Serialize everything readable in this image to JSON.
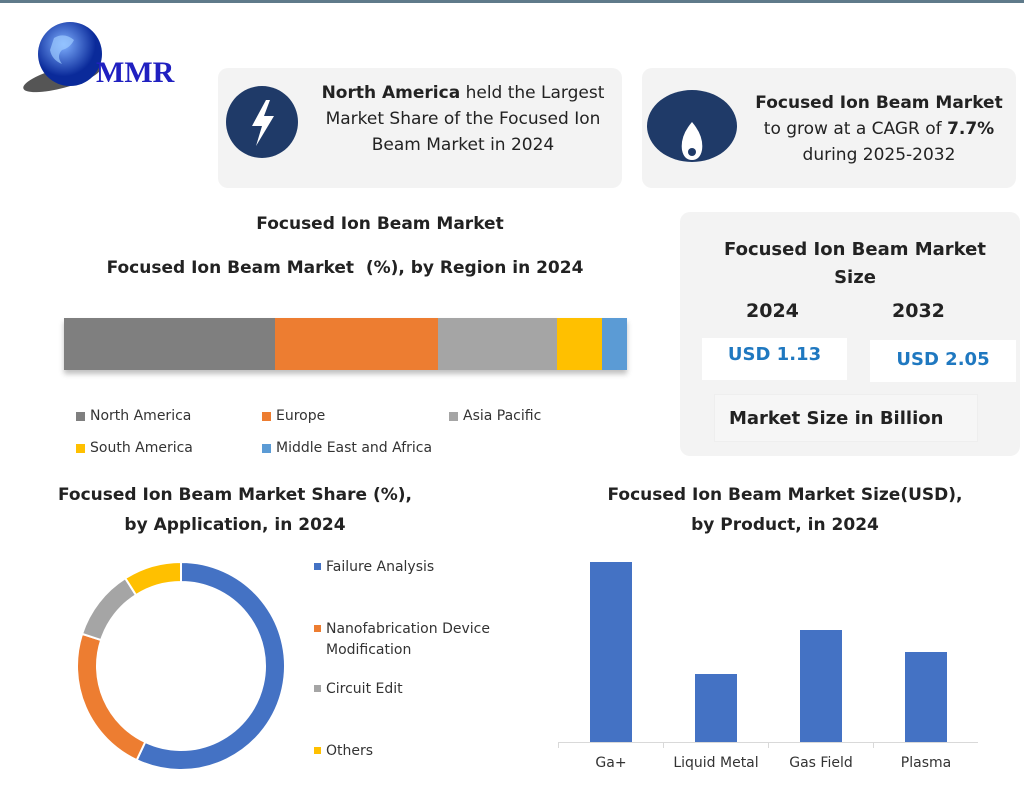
{
  "logo": {
    "text": "MMR"
  },
  "card1": {
    "bold": "North America",
    "rest1": " held the Largest",
    "line2": "Market Share of the Focused Ion",
    "line3": "Beam Market in 2024",
    "icon": "lightning-icon"
  },
  "card2": {
    "bold": "Focused Ion Beam Market",
    "line2a": "to grow at a CAGR of ",
    "cagr": "7.7%",
    "line3": "during 2025-2032",
    "icon": "flame-icon"
  },
  "size_panel": {
    "title1": "Focused Ion Beam Market",
    "title2": "Size",
    "year1": "2024",
    "year2": "2032",
    "value1": "USD 1.13",
    "value2": "USD 2.05",
    "note": "Market Size in Billion"
  },
  "colors": {
    "navy": "#1f3a68",
    "blue": "#4472c4",
    "orange": "#ed7d31",
    "gray": "#a5a5a5",
    "dark_gray": "#7f7f7f",
    "yellow": "#ffc000",
    "light_blue": "#5b9bd5"
  },
  "chart_data": [
    {
      "type": "bar",
      "orientation": "stacked-horizontal",
      "title": "Focused Ion Beam Market",
      "subtitle": "Focused Ion Beam Market  (%), by Region in 2024",
      "series": [
        {
          "name": "North America",
          "value": 37.5,
          "color": "#7f7f7f"
        },
        {
          "name": "Europe",
          "value": 29,
          "color": "#ed7d31"
        },
        {
          "name": "Asia Pacific",
          "value": 21,
          "color": "#a5a5a5"
        },
        {
          "name": "South America",
          "value": 8,
          "color": "#ffc000"
        },
        {
          "name": "Middle East and Africa",
          "value": 4.5,
          "color": "#5b9bd5"
        }
      ],
      "legend": "bottom"
    },
    {
      "type": "pie",
      "donut": true,
      "title1": "Focused Ion Beam Market Share (%),",
      "title2": "by Application, in 2024",
      "slices": [
        {
          "name": "Failure Analysis",
          "value": 57,
          "color": "#4472c4"
        },
        {
          "name": "Nanofabrication Device",
          "name2": "Modification",
          "value": 23,
          "color": "#ed7d31"
        },
        {
          "name": "Circuit Edit",
          "value": 11,
          "color": "#a5a5a5"
        },
        {
          "name": "Others",
          "value": 9,
          "color": "#ffc000"
        }
      ],
      "legend": "right"
    },
    {
      "type": "bar",
      "title1": "Focused Ion Beam Market Size(USD),",
      "title2": "by Product, in 2024",
      "categories": [
        "Ga+",
        "Liquid Metal",
        "Gas Field",
        "Plasma"
      ],
      "values": [
        171,
        64,
        106,
        85
      ],
      "ylim": [
        0,
        180
      ],
      "color": "#4472c4"
    }
  ]
}
